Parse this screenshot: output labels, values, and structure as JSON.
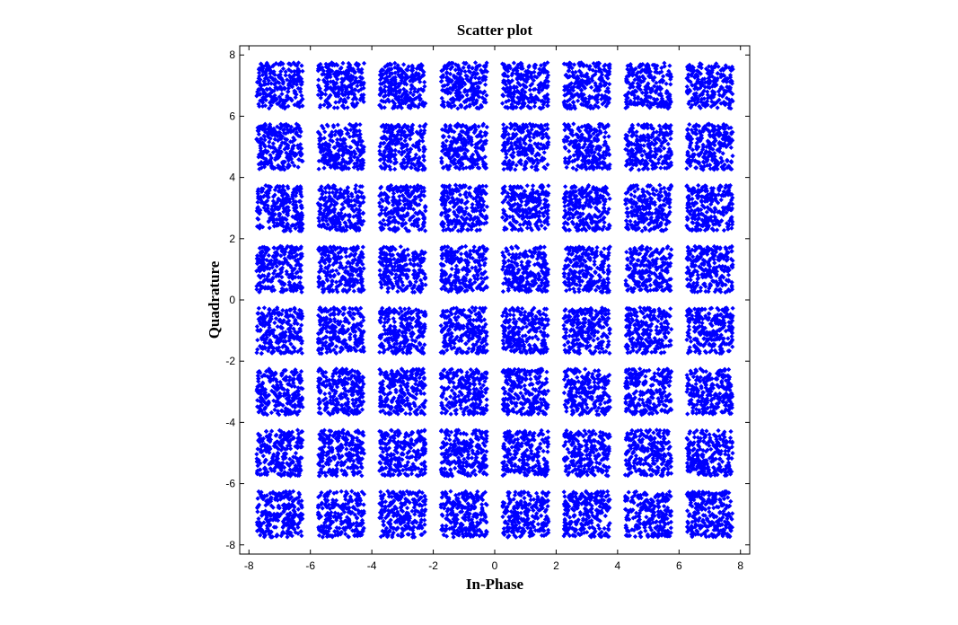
{
  "chart_data": {
    "type": "scatter",
    "title": "Scatter plot",
    "xlabel": "In-Phase",
    "ylabel": "Quadrature",
    "xlim": [
      -8.3,
      8.3
    ],
    "ylim": [
      -8.3,
      8.3
    ],
    "xticks": [
      -8,
      -6,
      -4,
      -2,
      0,
      2,
      4,
      6,
      8
    ],
    "yticks": [
      -8,
      -6,
      -4,
      -2,
      0,
      2,
      4,
      6,
      8
    ],
    "xtick_labels": [
      "-8",
      "-6",
      "-4",
      "-2",
      "0",
      "2",
      "4",
      "6",
      "8"
    ],
    "ytick_labels": [
      "-8",
      "-6",
      "-4",
      "-2",
      "0",
      "2",
      "4",
      "6",
      "8"
    ],
    "grid": false,
    "legend": false,
    "marker_color": "#0000ff",
    "marker_shape": "diamond",
    "constellation": "64-QAM",
    "cluster_centers": [
      -7,
      -5,
      -3,
      -1,
      1,
      3,
      5,
      7
    ],
    "cluster_half_width": 0.75
  }
}
